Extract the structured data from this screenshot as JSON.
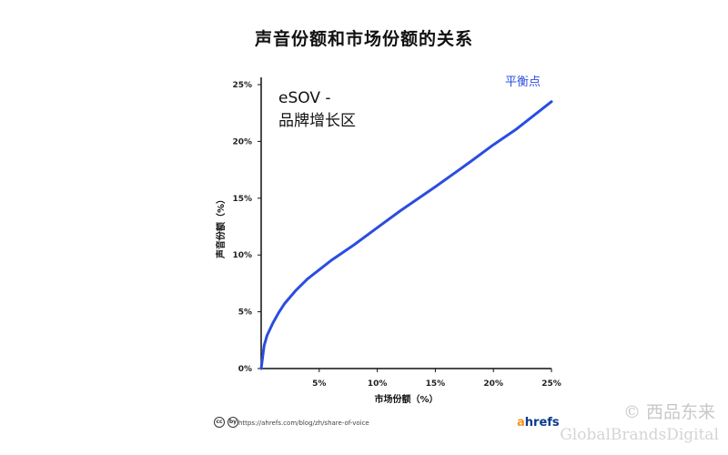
{
  "title": "声音份额和市场份额的关系",
  "chart_data": {
    "type": "line",
    "title": "声音份额和市场份额的关系",
    "xlabel": "市场份额（%）",
    "ylabel": "声音份额（%）",
    "xlim": [
      0,
      25
    ],
    "ylim": [
      0,
      25
    ],
    "x_ticks": [
      "5%",
      "10%",
      "15%",
      "20%",
      "25%"
    ],
    "y_ticks": [
      "0%",
      "5%",
      "10%",
      "15%",
      "20%",
      "25%"
    ],
    "series": [
      {
        "x": [
          0,
          0.25,
          0.5,
          1,
          1.5,
          2,
          3,
          4,
          5,
          6,
          7,
          8,
          10,
          12,
          15,
          18,
          20,
          22,
          25
        ],
        "y": [
          0,
          2.0,
          2.9,
          4.0,
          4.9,
          5.7,
          6.9,
          7.9,
          8.7,
          9.5,
          10.2,
          10.9,
          12.4,
          13.9,
          16.0,
          18.2,
          19.7,
          21.1,
          23.5
        ]
      }
    ],
    "color": "#2a4de0",
    "grid": false,
    "annotations": {
      "region_line1": "eSOV -",
      "region_line2": "品牌增长区",
      "balance_label": "平衡点"
    }
  },
  "footer": {
    "url": "https://ahrefs.com/blog/zh/share-of-voice",
    "cc_icons": [
      "cc",
      "by"
    ],
    "brand_a": "a",
    "brand_rest": "hrefs"
  },
  "watermark": {
    "line1": "© 西品东来",
    "line2": "GlobalBrandsDigital"
  }
}
